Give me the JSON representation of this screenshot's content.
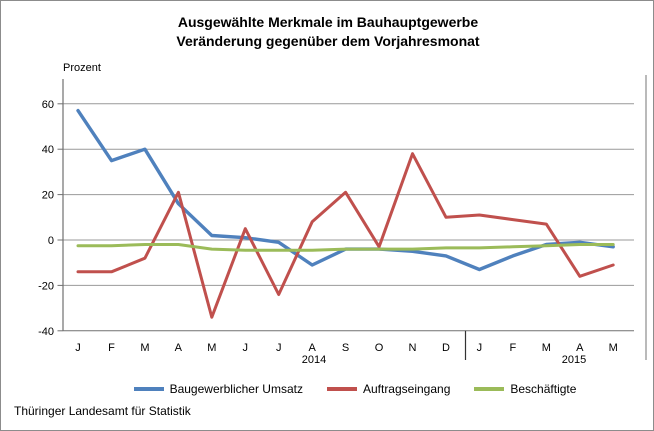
{
  "source": "Thüringer Landesamt für Statistik",
  "chart_data": {
    "type": "line",
    "title": "Ausgewählte Merkmale im Bauhauptgewerbe – Veränderung gegenüber dem Vorjahresmonat",
    "title_lines": [
      "Ausgewählte Merkmale im Bauhauptgewerbe",
      "Veränderung gegenüber dem Vorjahresmonat"
    ],
    "ylabel": "Prozent",
    "ylim": [
      -40,
      66
    ],
    "yticks": [
      60,
      40,
      20,
      0,
      -20,
      -40
    ],
    "grid": true,
    "legend_position": "bottom",
    "categories": [
      "J",
      "F",
      "M",
      "A",
      "M",
      "J",
      "J",
      "A",
      "S",
      "O",
      "N",
      "D",
      "J",
      "F",
      "M",
      "A",
      "M"
    ],
    "years": [
      {
        "label": "2014",
        "start_index": 0,
        "end_index": 11
      },
      {
        "label": "2015",
        "start_index": 12,
        "end_index": 16
      }
    ],
    "year_separator_after_index": 11,
    "series": [
      {
        "name": "Baugewerblicher Umsatz",
        "color": "#4F81BD",
        "values": [
          57,
          35,
          40,
          16,
          2,
          1,
          -1,
          -11,
          -4,
          -4,
          -5,
          -7,
          -13,
          -7,
          -2,
          -1,
          -3
        ]
      },
      {
        "name": "Auftragseingang",
        "color": "#C0504D",
        "values": [
          -14,
          -14,
          -8,
          21,
          -34,
          5,
          -24,
          8,
          21,
          -3,
          38,
          10,
          11,
          9,
          7,
          -16,
          -11
        ]
      },
      {
        "name": "Beschäftigte",
        "color": "#9BBB59",
        "values": [
          -2.5,
          -2.5,
          -2,
          -2,
          -4,
          -4.5,
          -4.5,
          -4.5,
          -4,
          -4,
          -4,
          -3.5,
          -3.5,
          -3,
          -2.5,
          -2,
          -2
        ]
      }
    ],
    "axis_color": "#707070",
    "grid_color": "#999999",
    "text_color": "#000000"
  }
}
